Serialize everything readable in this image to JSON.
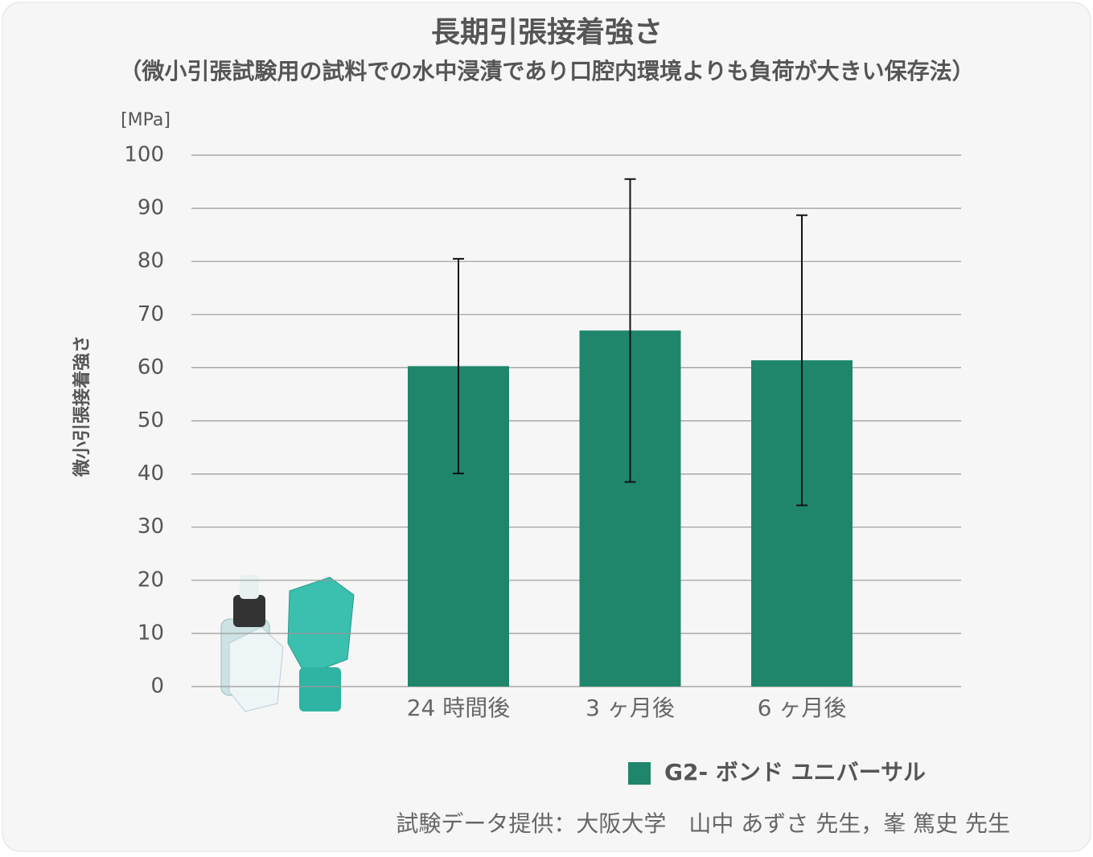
{
  "chart_data": {
    "type": "bar",
    "title": "長期引張接着強さ",
    "subtitle": "（微小引張試験用の試料での水中浸漬であり口腔内環境よりも負荷が大きい保存法）",
    "y_unit": "[MPa]",
    "y_label": "微小引張接着強さ",
    "categories": [
      "24 時間後",
      "3 ヶ月後",
      "6 ヶ月後"
    ],
    "series": [
      {
        "name": "G2- ボンド ユニバーサル",
        "color": "#1f866c",
        "values": [
          60.3,
          67.0,
          61.4
        ],
        "errors": [
          20.2,
          28.5,
          27.3
        ]
      }
    ],
    "ylim": [
      0,
      100
    ],
    "yticks": [
      0,
      10,
      20,
      30,
      40,
      50,
      60,
      70,
      80,
      90,
      100
    ],
    "grid": true,
    "footnote": "試験データ提供：大阪大学　山中 あずさ 先生，峯 篤史 先生"
  }
}
